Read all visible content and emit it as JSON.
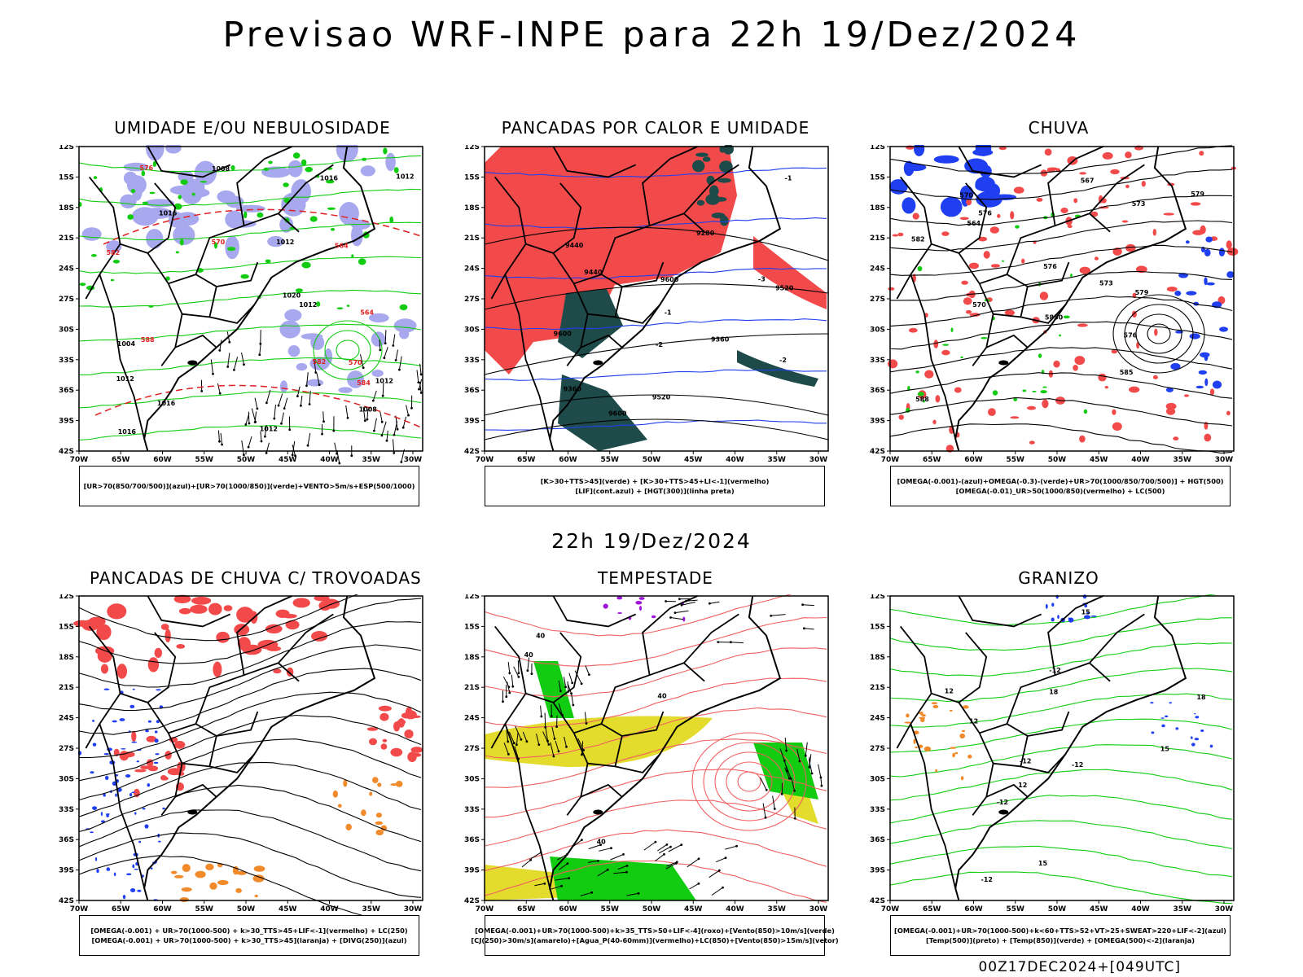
{
  "main_title": "Previsao WRF-INPE  para 22h 19/Dez/2024",
  "mid_title": "22h 19/Dez/2024",
  "footer": "00Z17DEC2024+[049UTC]",
  "lat_labels": [
    "12S",
    "15S",
    "18S",
    "21S",
    "24S",
    "27S",
    "30S",
    "33S",
    "36S",
    "39S",
    "42S"
  ],
  "lon_labels": [
    "70W",
    "65W",
    "60W",
    "55W",
    "50W",
    "45W",
    "40W",
    "35W",
    "30W"
  ],
  "colors": {
    "red": "#f24a4a",
    "green": "#11cc11",
    "blue": "#1f3ff0",
    "lavender": "#a8a8ee",
    "teal": "#1f4a4a",
    "yellow": "#e4dc2c",
    "orange": "#f08a2a",
    "purple": "#a016d8",
    "dashred": "#e02020",
    "salmon": "#f06060"
  },
  "panels": [
    {
      "id": "umidade",
      "title": "UMIDADE E/OU NEBULOSIDADE",
      "legend": [
        "[UR>70(850/700/500)](azul)+[UR>70(1000/850)](verde)+VENTO>5m/s+ESP(500/1000)"
      ],
      "contour_labels": [
        "1012",
        "1012",
        "1012",
        "1008",
        "1016",
        "1016",
        "1012",
        "1008",
        "1004",
        "1012",
        "1016",
        "1020",
        "1016",
        "1012",
        "576",
        "582",
        "584",
        "570",
        "582",
        "588",
        "570",
        "564",
        "564"
      ]
    },
    {
      "id": "pancadas-calor",
      "title": "PANCADAS POR CALOR E UMIDADE",
      "legend": [
        "[K>30+TTS>45](verde) + [K>30+TTS>45+LI<-1](vermelho)",
        "[LIF](cont.azul) + [HGT(300)](linha preta)"
      ],
      "contour_labels": [
        "9600",
        "9600",
        "9520",
        "9520",
        "9440",
        "9440",
        "9360",
        "9360",
        "9280",
        "9600",
        "-1",
        "-2",
        "-3",
        "-1",
        "-2"
      ]
    },
    {
      "id": "chuva",
      "title": "CHUVA",
      "legend": [
        "[OMEGA(-0.001)-(azul)+OMEGA(-0.3)-(verde)+UR>70(1000/850/700/500)] + HGT(500)",
        "[OMEGA(-0.01)_UR>50(1000/850)(vermelho) + LC(500)"
      ],
      "contour_labels": [
        "5850",
        "588",
        "582",
        "585",
        "576",
        "576",
        "579",
        "573",
        "570",
        "570",
        "567",
        "564",
        "576",
        "573",
        "579"
      ]
    },
    {
      "id": "trovoadas",
      "title": "PANCADAS DE CHUVA C/ TROVOADAS",
      "legend": [
        "[OMEGA(-0.001) + UR>70(1000-500) + k>30_TTS>45+LIF<-1](vermelho) + LC(250)",
        "[OMEGA(-0.001) + UR>70(1000-500) + k>30_TTS>45](laranja) + [DIVG(250)](azul)"
      ],
      "contour_labels": []
    },
    {
      "id": "tempestade",
      "title": "TEMPESTADE",
      "legend": [
        "[OMEGA(-0.001)+UR>70(1000-500)+k>35_TTS>50+LIF<-4](roxo)+[Vento(850)>10m/s](verde)",
        "[CJ(250)>30m/s](amarelo)+[Agua_P(40-60mm)](vermelho)+LC(850)+[Vento(850)>15m/s](vetor)"
      ],
      "contour_labels": [
        "40",
        "40",
        "40",
        "40"
      ]
    },
    {
      "id": "granizo",
      "title": "GRANIZO",
      "legend": [
        "[OMEGA(-0.001)+UR>70(1000-500)+k<60+TTS>52+VT>25+SWEAT>220+LIF<-2](azul)",
        "[Temp(500)](preto) + [Temp(850)](verde) + [OMEGA(500)<-2](laranja)"
      ],
      "contour_labels": [
        "-12",
        "-12",
        "-12",
        "-12",
        "-12",
        "12",
        "12",
        "12",
        "15",
        "15",
        "15",
        "18",
        "18"
      ]
    }
  ]
}
